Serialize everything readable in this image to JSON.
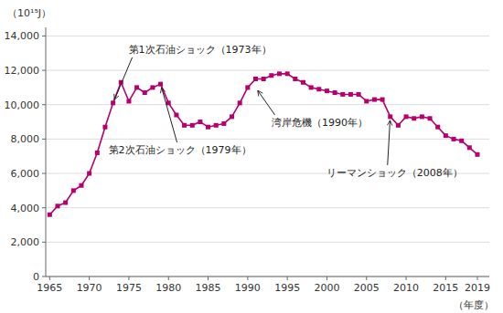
{
  "chart_data": {
    "type": "line",
    "x": [
      1965,
      1966,
      1967,
      1968,
      1969,
      1970,
      1971,
      1972,
      1973,
      1974,
      1975,
      1976,
      1977,
      1978,
      1979,
      1980,
      1981,
      1982,
      1983,
      1984,
      1985,
      1986,
      1987,
      1988,
      1989,
      1990,
      1991,
      1992,
      1993,
      1994,
      1995,
      1996,
      1997,
      1998,
      1999,
      2000,
      2001,
      2002,
      2003,
      2004,
      2005,
      2006,
      2007,
      2008,
      2009,
      2010,
      2011,
      2012,
      2013,
      2014,
      2015,
      2016,
      2017,
      2018,
      2019
    ],
    "values": [
      3600,
      4100,
      4300,
      5000,
      5300,
      6000,
      7200,
      8700,
      10100,
      11300,
      10200,
      11000,
      10700,
      11000,
      11200,
      10100,
      9400,
      8800,
      8800,
      9000,
      8700,
      8800,
      8900,
      9300,
      10100,
      11000,
      11500,
      11500,
      11700,
      11800,
      11800,
      11500,
      11300,
      11000,
      10900,
      10800,
      10700,
      10600,
      10600,
      10600,
      10200,
      10300,
      10300,
      9300,
      8800,
      9300,
      9200,
      9300,
      9200,
      8700,
      8200,
      8000,
      7900,
      7500,
      7100
    ],
    "color": "#b5006e",
    "marker": "square",
    "y_label": "（10¹⁵J）",
    "x_label": "（年度）",
    "xlim": [
      1964.5,
      2020.5
    ],
    "ylim": [
      0,
      14500
    ],
    "xticks": [
      1965,
      1970,
      1975,
      1980,
      1985,
      1990,
      1995,
      2000,
      2005,
      2010,
      2015,
      2019
    ],
    "yticks": [
      0,
      {
        "value": 2000,
        "label": "2,000"
      },
      {
        "value": 4000,
        "label": "4,000"
      },
      {
        "value": 6000,
        "label": "6,000"
      },
      {
        "value": 8000,
        "label": "8,000"
      },
      {
        "value": 10000,
        "label": "10,000"
      },
      {
        "value": 12000,
        "label": "12,000"
      },
      {
        "value": 14000,
        "label": "14,000"
      }
    ],
    "grid": true,
    "annotations": [
      {
        "text": "第1次石油ショック（1973年）",
        "x": 1973,
        "y": 10100
      },
      {
        "text": "第2次石油ショック（1979年）",
        "x": 1979,
        "y": 11200
      },
      {
        "text": "湾岸危機（1990年）",
        "x": 1991,
        "y": 11000
      },
      {
        "text": "リーマンショック（2008年）",
        "x": 2008,
        "y": 9300
      }
    ]
  }
}
